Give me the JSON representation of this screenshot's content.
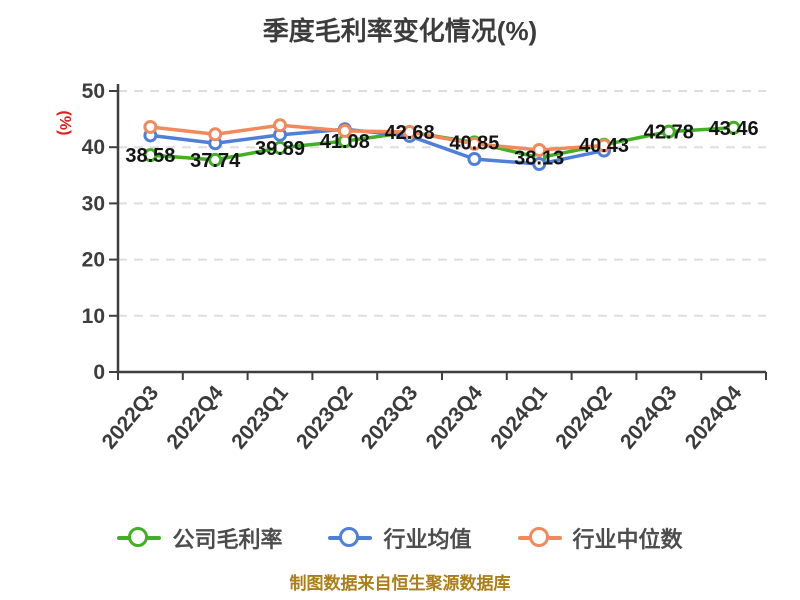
{
  "title": "季度毛利率变化情况(%)",
  "y_axis_unit": "(%)",
  "caption": "制图数据来自恒生聚源数据库",
  "colors": {
    "company": "#41b024",
    "industry_avg": "#4f7fd8",
    "industry_median": "#f08a5c",
    "axis": "#3f3f3f",
    "grid": "#dedede",
    "unit_label": "#e01f1f",
    "caption": "#ab7e18",
    "value_label": "#141414"
  },
  "chart_data": {
    "type": "line",
    "title": "季度毛利率变化情况(%)",
    "ylabel": "(%)",
    "categories": [
      "2022Q3",
      "2022Q4",
      "2023Q1",
      "2023Q2",
      "2023Q3",
      "2023Q4",
      "2024Q1",
      "2024Q2",
      "2024Q3",
      "2024Q4"
    ],
    "series": [
      {
        "id": "company-gross-margin",
        "name": "公司毛利率",
        "color": "#41b024",
        "show_labels": true,
        "values": [
          38.58,
          37.74,
          39.89,
          41.08,
          42.68,
          40.85,
          38.13,
          40.43,
          42.78,
          43.46
        ]
      },
      {
        "id": "industry-average",
        "name": "行业均值",
        "color": "#4f7fd8",
        "show_labels": false,
        "values": [
          42.1,
          40.7,
          42.2,
          43.2,
          42.0,
          37.9,
          37.0,
          39.4,
          null,
          null
        ]
      },
      {
        "id": "industry-median",
        "name": "行业中位数",
        "color": "#f08a5c",
        "show_labels": false,
        "values": [
          43.6,
          42.3,
          43.9,
          42.9,
          42.7,
          40.6,
          39.5,
          40.3,
          null,
          null
        ]
      }
    ],
    "ylim": [
      0,
      50
    ],
    "yticks": [
      0,
      10,
      20,
      30,
      40,
      50
    ],
    "grid": "horizontal-dashed",
    "legend_position": "bottom",
    "x_label_rotation": -50
  }
}
